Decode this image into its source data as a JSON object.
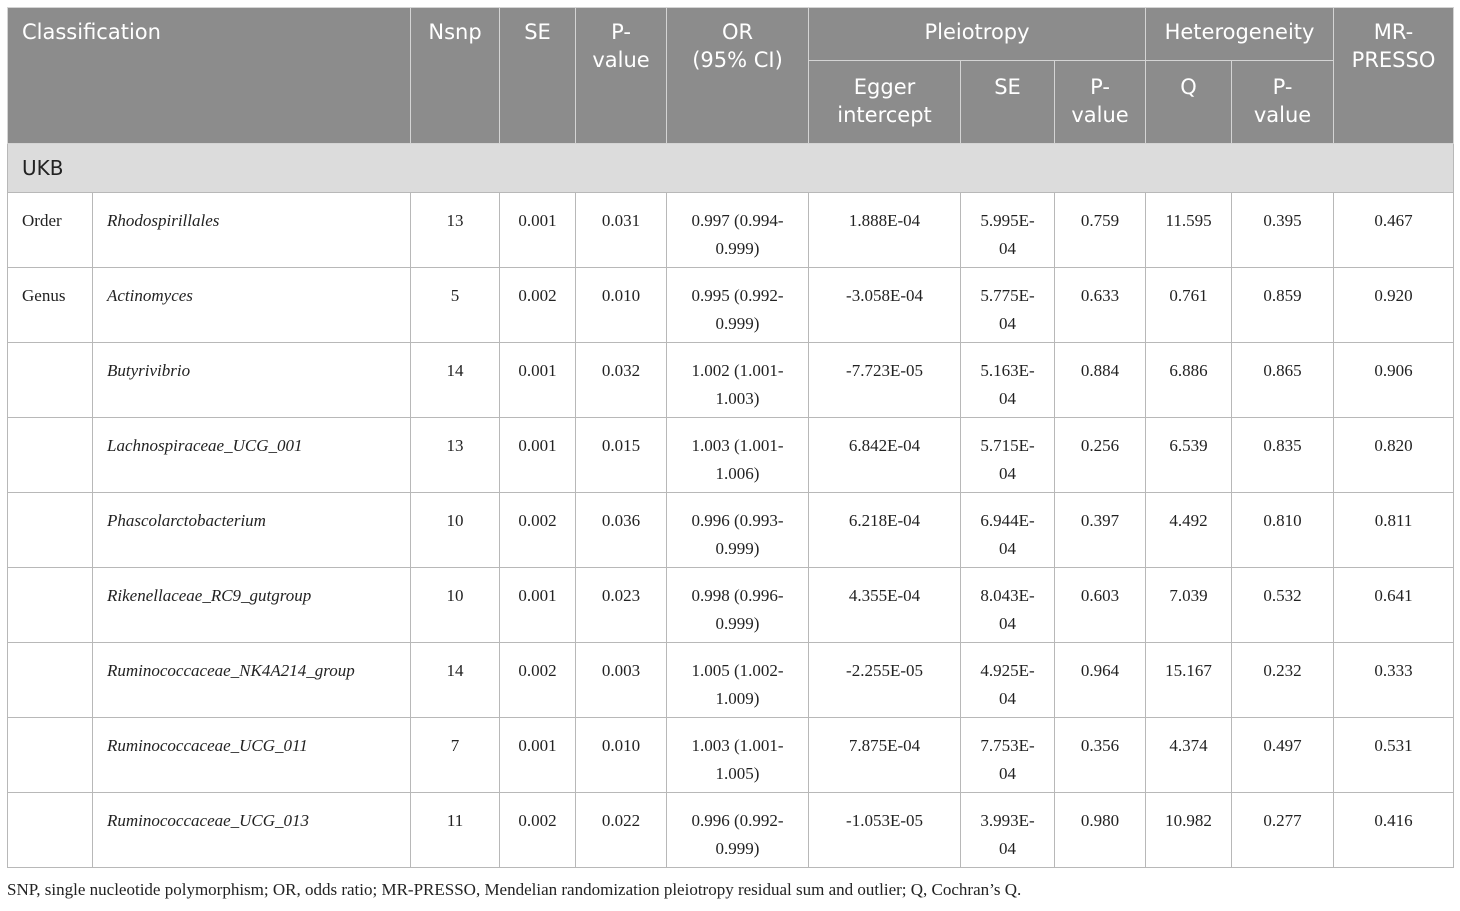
{
  "header": {
    "classification": "Classification",
    "nsnp": "Nsnp",
    "se": "SE",
    "pvalue": "P-\nvalue",
    "or": "OR\n(95% CI)",
    "pleiotropy": "Pleiotropy",
    "heterogeneity": "Heterogeneity",
    "mrpresso": "MR-\nPRESSO",
    "egger": "Egger\nintercept",
    "ple_se": "SE",
    "ple_p": "P-\nvalue",
    "q": "Q",
    "het_p": "P-\nvalue"
  },
  "group": "UKB",
  "rows": [
    {
      "cls": "Order",
      "taxon": "Rhodospirillales",
      "nsnp": "13",
      "se": "0.001",
      "p": "0.031",
      "or": "0.997 (0.994-\n0.999)",
      "egger": "1.888E-04",
      "ple_se": "5.995E-\n04",
      "ple_p": "0.759",
      "q": "11.595",
      "het_p": "0.395",
      "mrpresso": "0.467"
    },
    {
      "cls": "Genus",
      "taxon": "Actinomyces",
      "nsnp": "5",
      "se": "0.002",
      "p": "0.010",
      "or": "0.995 (0.992-\n0.999)",
      "egger": "-3.058E-04",
      "ple_se": "5.775E-\n04",
      "ple_p": "0.633",
      "q": "0.761",
      "het_p": "0.859",
      "mrpresso": "0.920"
    },
    {
      "cls": "",
      "taxon": "Butyrivibrio",
      "nsnp": "14",
      "se": "0.001",
      "p": "0.032",
      "or": "1.002 (1.001-\n1.003)",
      "egger": "-7.723E-05",
      "ple_se": "5.163E-\n04",
      "ple_p": "0.884",
      "q": "6.886",
      "het_p": "0.865",
      "mrpresso": "0.906"
    },
    {
      "cls": "",
      "taxon": "Lachnospiraceae_UCG_001",
      "nsnp": "13",
      "se": "0.001",
      "p": "0.015",
      "or": "1.003 (1.001-\n1.006)",
      "egger": "6.842E-04",
      "ple_se": "5.715E-\n04",
      "ple_p": "0.256",
      "q": "6.539",
      "het_p": "0.835",
      "mrpresso": "0.820"
    },
    {
      "cls": "",
      "taxon": "Phascolarctobacterium",
      "nsnp": "10",
      "se": "0.002",
      "p": "0.036",
      "or": "0.996 (0.993-\n0.999)",
      "egger": "6.218E-04",
      "ple_se": "6.944E-\n04",
      "ple_p": "0.397",
      "q": "4.492",
      "het_p": "0.810",
      "mrpresso": "0.811"
    },
    {
      "cls": "",
      "taxon": "Rikenellaceae_RC9_gutgroup",
      "nsnp": "10",
      "se": "0.001",
      "p": "0.023",
      "or": "0.998 (0.996-\n0.999)",
      "egger": "4.355E-04",
      "ple_se": "8.043E-\n04",
      "ple_p": "0.603",
      "q": "7.039",
      "het_p": "0.532",
      "mrpresso": "0.641"
    },
    {
      "cls": "",
      "taxon": "Ruminococcaceae_NK4A214_group",
      "nsnp": "14",
      "se": "0.002",
      "p": "0.003",
      "or": "1.005 (1.002-\n1.009)",
      "egger": "-2.255E-05",
      "ple_se": "4.925E-\n04",
      "ple_p": "0.964",
      "q": "15.167",
      "het_p": "0.232",
      "mrpresso": "0.333"
    },
    {
      "cls": "",
      "taxon": "Ruminococcaceae_UCG_011",
      "nsnp": "7",
      "se": "0.001",
      "p": "0.010",
      "or": "1.003 (1.001-\n1.005)",
      "egger": "7.875E-04",
      "ple_se": "7.753E-\n04",
      "ple_p": "0.356",
      "q": "4.374",
      "het_p": "0.497",
      "mrpresso": "0.531"
    },
    {
      "cls": "",
      "taxon": "Ruminococcaceae_UCG_013",
      "nsnp": "11",
      "se": "0.002",
      "p": "0.022",
      "or": "0.996 (0.992-\n0.999)",
      "egger": "-1.053E-05",
      "ple_se": "3.993E-\n04",
      "ple_p": "0.980",
      "q": "10.982",
      "het_p": "0.277",
      "mrpresso": "0.416"
    }
  ],
  "footnote": "SNP, single nucleotide polymorphism; OR, odds ratio; MR-PRESSO, Mendelian randomization pleiotropy residual sum and outlier; Q, Cochran’s Q.",
  "colors": {
    "header_bg": "#8c8c8c",
    "group_bg": "#dcdcdc",
    "border": "#b8b8b8"
  }
}
